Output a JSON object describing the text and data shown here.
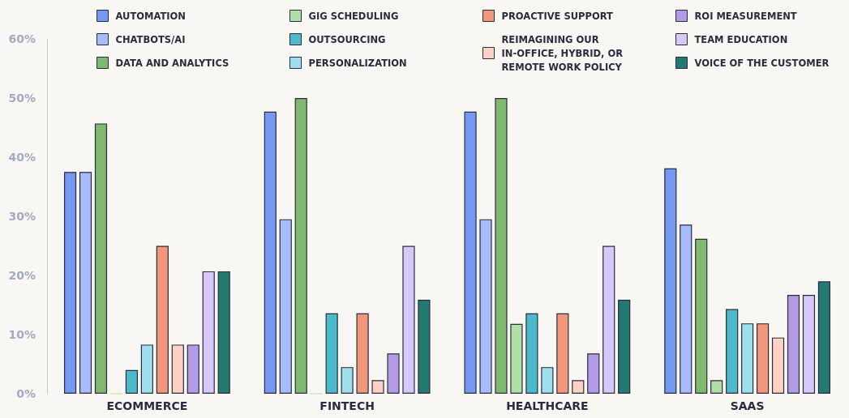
{
  "chart_data": {
    "type": "bar",
    "categories": [
      "ECOMMERCE",
      "FINTECH",
      "HEALTHCARE",
      "SAAS"
    ],
    "ylim": [
      0,
      60
    ],
    "yticks": [
      {
        "value": 0,
        "label": "0%"
      },
      {
        "value": 10,
        "label": "10%"
      },
      {
        "value": 20,
        "label": "20%"
      },
      {
        "value": 30,
        "label": "30%"
      },
      {
        "value": 40,
        "label": "40%"
      },
      {
        "value": 50,
        "label": "50%"
      },
      {
        "value": 60,
        "label": "60%"
      }
    ],
    "grid": false,
    "legend": "top",
    "series": [
      {
        "name": "AUTOMATION",
        "color": "#7598f2",
        "values": [
          37.5,
          47.7,
          47.7,
          38.1
        ]
      },
      {
        "name": "CHATBOTS/AI",
        "color": "#a6bcfc",
        "values": [
          37.5,
          29.5,
          29.5,
          28.6
        ]
      },
      {
        "name": "DATA AND ANALYTICS",
        "color": "#7eb96f",
        "values": [
          45.7,
          50,
          50,
          26.2
        ]
      },
      {
        "name": "GIG SCHEDULING",
        "color": "#b1dfa6",
        "values": [
          0,
          0,
          11.8,
          2.3
        ]
      },
      {
        "name": "OUTSOURCING",
        "color": "#4bbacb",
        "values": [
          4,
          13.6,
          13.6,
          14.3
        ]
      },
      {
        "name": "PERSONALIZATION",
        "color": "#9fdeed",
        "values": [
          8.3,
          4.5,
          4.5,
          11.9
        ]
      },
      {
        "name": "PROACTIVE SUPPORT",
        "color": "#f2977b",
        "values": [
          25,
          13.6,
          13.6,
          11.9
        ]
      },
      {
        "name": "REIMAGINING OUR\nIN-OFFICE, HYBRID, OR\nREMOTE WORK POLICY",
        "color": "#ffd1c4",
        "values": [
          8.3,
          2.3,
          2.3,
          9.5
        ]
      },
      {
        "name": "ROI MEASUREMENT",
        "color": "#b39ce5",
        "values": [
          8.3,
          6.8,
          6.8,
          16.7
        ]
      },
      {
        "name": "TEAM EDUCATION",
        "color": "#d6c8f8",
        "values": [
          20.7,
          25,
          25,
          16.7
        ]
      },
      {
        "name": "VOICE OF THE CUSTOMER",
        "color": "#237a70",
        "values": [
          20.7,
          15.9,
          15.9,
          19
        ]
      }
    ]
  }
}
